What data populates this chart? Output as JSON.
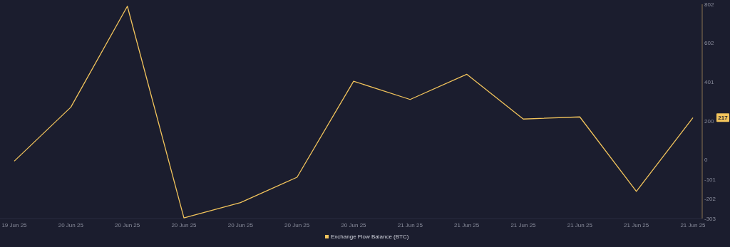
{
  "chart_data": {
    "type": "line",
    "categories": [
      "19 Jun 25",
      "20 Jun 25",
      "20 Jun 25",
      "20 Jun 25",
      "20 Jun 25",
      "20 Jun 25",
      "20 Jun 25",
      "21 Jun 25",
      "21 Jun 25",
      "21 Jun 25",
      "21 Jun 25",
      "21 Jun 25",
      "21 Jun 25"
    ],
    "series": [
      {
        "name": "Exchange Flow Balance (BTC)",
        "color": "#f2c45c",
        "values": [
          -7,
          271,
          792,
          -300,
          -221,
          -90,
          405,
          311,
          441,
          210,
          221,
          -163,
          217
        ]
      }
    ],
    "ylim": [
      -303,
      802
    ],
    "yticks": [
      -303,
      -202,
      -101,
      0,
      200,
      401,
      602,
      802
    ],
    "annotations": [
      "217"
    ],
    "legend": "bottom",
    "grid": false
  }
}
